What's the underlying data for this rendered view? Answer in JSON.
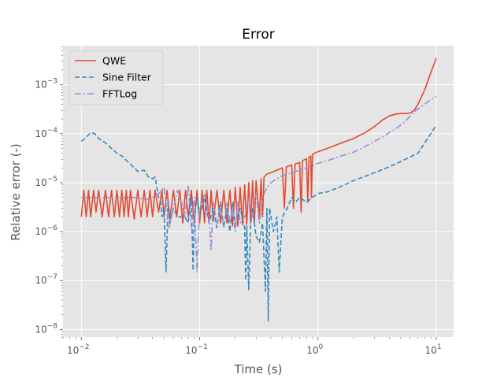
{
  "chart_data": {
    "type": "line",
    "title": "Error",
    "xlabel": "Time (s)",
    "ylabel": "Relative error (-)",
    "xscale": "log",
    "yscale": "log",
    "xlim": [
      0.007,
      14
    ],
    "ylim": [
      7e-09,
      0.0063
    ],
    "grid": true,
    "legend_position": "top-left",
    "background": "#e5e5e5",
    "x_ticks": [
      {
        "value": 0.01,
        "base": "10",
        "exp": "−2"
      },
      {
        "value": 0.1,
        "base": "10",
        "exp": "−1"
      },
      {
        "value": 1,
        "base": "10",
        "exp": "0"
      },
      {
        "value": 10,
        "base": "10",
        "exp": "1"
      }
    ],
    "y_ticks": [
      {
        "value": 1e-08,
        "base": "10",
        "exp": "−8"
      },
      {
        "value": 1e-07,
        "base": "10",
        "exp": "−7"
      },
      {
        "value": 1e-06,
        "base": "10",
        "exp": "−6"
      },
      {
        "value": 1e-05,
        "base": "10",
        "exp": "−5"
      },
      {
        "value": 0.0001,
        "base": "10",
        "exp": "−4"
      },
      {
        "value": 0.001,
        "base": "10",
        "exp": "−3"
      }
    ],
    "series": [
      {
        "name": "QWE",
        "color": "#e24a33",
        "dash": "solid",
        "points": [
          [
            0.01,
            2e-06
          ],
          [
            0.0105,
            7e-06
          ],
          [
            0.011,
            2e-06
          ],
          [
            0.0115,
            7e-06
          ],
          [
            0.012,
            2e-06
          ],
          [
            0.0127,
            7e-06
          ],
          [
            0.0133,
            2.5e-06
          ],
          [
            0.014,
            7e-06
          ],
          [
            0.015,
            2e-06
          ],
          [
            0.016,
            7e-06
          ],
          [
            0.017,
            2e-06
          ],
          [
            0.018,
            7e-06
          ],
          [
            0.019,
            2e-06
          ],
          [
            0.02,
            7e-06
          ],
          [
            0.021,
            2e-06
          ],
          [
            0.022,
            7e-06
          ],
          [
            0.023,
            2e-06
          ],
          [
            0.024,
            7e-06
          ],
          [
            0.025,
            2e-06
          ],
          [
            0.026,
            7e-06
          ],
          [
            0.028,
            1.8e-06
          ],
          [
            0.03,
            7e-06
          ],
          [
            0.032,
            2e-06
          ],
          [
            0.034,
            7e-06
          ],
          [
            0.036,
            2e-06
          ],
          [
            0.038,
            7e-06
          ],
          [
            0.04,
            2e-06
          ],
          [
            0.042,
            7e-06
          ],
          [
            0.045,
            2.5e-06
          ],
          [
            0.048,
            7e-06
          ],
          [
            0.05,
            2e-06
          ],
          [
            0.053,
            7e-06
          ],
          [
            0.056,
            1.8e-06
          ],
          [
            0.06,
            7e-06
          ],
          [
            0.064,
            2e-06
          ],
          [
            0.068,
            7e-06
          ],
          [
            0.072,
            1.5e-06
          ],
          [
            0.076,
            7e-06
          ],
          [
            0.08,
            2e-06
          ],
          [
            0.085,
            7e-06
          ],
          [
            0.09,
            1.5e-06
          ],
          [
            0.095,
            7e-06
          ],
          [
            0.1,
            1.5e-06
          ],
          [
            0.105,
            7e-06
          ],
          [
            0.11,
            1.5e-06
          ],
          [
            0.115,
            7e-06
          ],
          [
            0.12,
            1.5e-06
          ],
          [
            0.125,
            7e-06
          ],
          [
            0.13,
            1.6e-06
          ],
          [
            0.14,
            7e-06
          ],
          [
            0.15,
            1.5e-06
          ],
          [
            0.16,
            7e-06
          ],
          [
            0.17,
            1.5e-06
          ],
          [
            0.18,
            7e-06
          ],
          [
            0.19,
            1.3e-06
          ],
          [
            0.2,
            8e-06
          ],
          [
            0.21,
            1.3e-06
          ],
          [
            0.22,
            8e-06
          ],
          [
            0.23,
            1.4e-06
          ],
          [
            0.24,
            9e-06
          ],
          [
            0.25,
            1.4e-06
          ],
          [
            0.26,
            1e-05
          ],
          [
            0.27,
            1.5e-06
          ],
          [
            0.28,
            1.1e-05
          ],
          [
            0.29,
            1.5e-06
          ],
          [
            0.3,
            1.1e-05
          ],
          [
            0.32,
            2e-06
          ],
          [
            0.33,
            1.2e-05
          ],
          [
            0.34,
            2e-06
          ],
          [
            0.35,
            1.3e-05
          ],
          [
            0.36,
            1.4e-05
          ],
          [
            0.37,
            1.5e-05
          ],
          [
            0.4,
            1.6e-05
          ],
          [
            0.45,
            1.8e-05
          ],
          [
            0.5,
            2e-05
          ],
          [
            0.52,
            3e-06
          ],
          [
            0.54,
            2.1e-05
          ],
          [
            0.6,
            2.3e-05
          ],
          [
            0.62,
            3e-06
          ],
          [
            0.64,
            2.4e-05
          ],
          [
            0.7,
            2.6e-05
          ],
          [
            0.72,
            2.5e-06
          ],
          [
            0.74,
            2.8e-05
          ],
          [
            0.8,
            3.1e-05
          ],
          [
            0.82,
            4e-06
          ],
          [
            0.84,
            3.3e-05
          ],
          [
            0.87,
            3.5e-05
          ],
          [
            0.88,
            5e-06
          ],
          [
            0.9,
            3.8e-05
          ],
          [
            1,
            4.3e-05
          ],
          [
            1.2,
            5e-05
          ],
          [
            1.5,
            6.2e-05
          ],
          [
            2,
            8e-05
          ],
          [
            2.5,
            0.000105
          ],
          [
            3,
            0.00014
          ],
          [
            3.5,
            0.00019
          ],
          [
            4,
            0.00023
          ],
          [
            4.5,
            0.00025
          ],
          [
            5,
            0.00026
          ],
          [
            5.5,
            0.00026
          ],
          [
            6,
            0.000265
          ],
          [
            6.5,
            0.0003
          ],
          [
            7,
            0.0004
          ],
          [
            8,
            0.0008
          ],
          [
            9,
            0.0018
          ],
          [
            10,
            0.0035
          ]
        ]
      },
      {
        "name": "Sine Filter",
        "color": "#348abd",
        "dash": "6,3",
        "points": [
          [
            0.01,
            7e-05
          ],
          [
            0.011,
            8.5e-05
          ],
          [
            0.012,
            0.000105
          ],
          [
            0.013,
            0.0001
          ],
          [
            0.014,
            8e-05
          ],
          [
            0.016,
            6.5e-05
          ],
          [
            0.018,
            5e-05
          ],
          [
            0.02,
            4e-05
          ],
          [
            0.022,
            3.5e-05
          ],
          [
            0.025,
            2.6e-05
          ],
          [
            0.028,
            2e-05
          ],
          [
            0.03,
            1.7e-05
          ],
          [
            0.034,
            1.8e-05
          ],
          [
            0.037,
            1.3e-05
          ],
          [
            0.04,
            1.2e-05
          ],
          [
            0.042,
            1.3e-05
          ],
          [
            0.045,
            5e-06
          ],
          [
            0.047,
            4e-06
          ],
          [
            0.048,
            2e-06
          ],
          [
            0.05,
            3e-06
          ],
          [
            0.052,
            1.5e-07
          ],
          [
            0.054,
            4e-06
          ],
          [
            0.056,
            1.5e-06
          ],
          [
            0.06,
            3e-06
          ],
          [
            0.065,
            2e-06
          ],
          [
            0.07,
            2e-06
          ],
          [
            0.075,
            2e-06
          ],
          [
            0.08,
            1.5e-06
          ],
          [
            0.085,
            5e-06
          ],
          [
            0.088,
            1.6e-07
          ],
          [
            0.09,
            2e-06
          ],
          [
            0.095,
            5e-06
          ],
          [
            0.1,
            2e-06
          ],
          [
            0.11,
            5e-06
          ],
          [
            0.12,
            1.5e-06
          ],
          [
            0.13,
            3e-06
          ],
          [
            0.14,
            1.2e-06
          ],
          [
            0.15,
            4e-06
          ],
          [
            0.16,
            1.2e-06
          ],
          [
            0.17,
            3e-06
          ],
          [
            0.18,
            1e-06
          ],
          [
            0.19,
            4e-06
          ],
          [
            0.2,
            1.4e-06
          ],
          [
            0.22,
            3e-06
          ],
          [
            0.24,
            1.2e-06
          ],
          [
            0.245,
            1e-07
          ],
          [
            0.25,
            1.3e-06
          ],
          [
            0.26,
            6.5e-08
          ],
          [
            0.27,
            1.5e-06
          ],
          [
            0.28,
            3e-06
          ],
          [
            0.3,
            8e-07
          ],
          [
            0.32,
            6e-07
          ],
          [
            0.34,
            1.5e-06
          ],
          [
            0.36,
            6e-08
          ],
          [
            0.37,
            3e-06
          ],
          [
            0.38,
            1.5e-08
          ],
          [
            0.39,
            3e-06
          ],
          [
            0.42,
            1e-06
          ],
          [
            0.45,
            2e-06
          ],
          [
            0.47,
            1.5e-07
          ],
          [
            0.5,
            2e-06
          ],
          [
            0.55,
            3e-06
          ],
          [
            0.6,
            5e-06
          ],
          [
            0.65,
            4e-06
          ],
          [
            0.7,
            5e-06
          ],
          [
            0.8,
            4e-06
          ],
          [
            0.9,
            5e-06
          ],
          [
            1,
            6e-06
          ],
          [
            1.2,
            6.5e-06
          ],
          [
            1.5,
            8e-06
          ],
          [
            2,
            1.1e-05
          ],
          [
            3,
            1.6e-05
          ],
          [
            4,
            2.1e-05
          ],
          [
            5,
            2.7e-05
          ],
          [
            7,
            4e-05
          ],
          [
            10,
            0.00015
          ]
        ]
      },
      {
        "name": "FFTLog",
        "color": "#988ed5",
        "dash": "8,3,2,3",
        "points": [
          [
            0.01,
            5e-06
          ],
          [
            0.015,
            5e-06
          ],
          [
            0.02,
            5e-06
          ],
          [
            0.025,
            5e-06
          ],
          [
            0.03,
            5e-06
          ],
          [
            0.035,
            4.5e-06
          ],
          [
            0.04,
            5e-06
          ],
          [
            0.045,
            6e-06
          ],
          [
            0.048,
            7e-06
          ],
          [
            0.05,
            8e-06
          ],
          [
            0.055,
            1.2e-06
          ],
          [
            0.06,
            3e-06
          ],
          [
            0.065,
            7e-06
          ],
          [
            0.07,
            4e-06
          ],
          [
            0.075,
            2e-06
          ],
          [
            0.08,
            9e-06
          ],
          [
            0.085,
            1.2e-06
          ],
          [
            0.09,
            5e-06
          ],
          [
            0.095,
            1.5e-07
          ],
          [
            0.1,
            3e-06
          ],
          [
            0.11,
            6e-06
          ],
          [
            0.12,
            2e-06
          ],
          [
            0.125,
            4e-07
          ],
          [
            0.13,
            4e-06
          ],
          [
            0.14,
            1.5e-06
          ],
          [
            0.15,
            3e-06
          ],
          [
            0.16,
            1.2e-06
          ],
          [
            0.17,
            4e-06
          ],
          [
            0.18,
            1.5e-06
          ],
          [
            0.19,
            3e-06
          ],
          [
            0.2,
            1e-06
          ],
          [
            0.21,
            4e-06
          ],
          [
            0.22,
            1.5e-06
          ],
          [
            0.24,
            2e-06
          ],
          [
            0.26,
            5e-06
          ],
          [
            0.28,
            2e-06
          ],
          [
            0.3,
            6e-06
          ],
          [
            0.32,
            1.5e-06
          ],
          [
            0.34,
            5e-06
          ],
          [
            0.37,
            8e-06
          ],
          [
            0.4,
            1e-05
          ],
          [
            0.45,
            1.2e-05
          ],
          [
            0.5,
            1.4e-05
          ],
          [
            0.55,
            1.5e-05
          ],
          [
            0.6,
            1.6e-05
          ],
          [
            0.7,
            1.8e-05
          ],
          [
            0.8,
            2e-05
          ],
          [
            0.9,
            2.2e-05
          ],
          [
            1,
            2.5e-05
          ],
          [
            1.2,
            2.8e-05
          ],
          [
            1.5,
            3.4e-05
          ],
          [
            2,
            4.2e-05
          ],
          [
            2.5,
            5.5e-05
          ],
          [
            3,
            7e-05
          ],
          [
            3.5,
            8.5e-05
          ],
          [
            4,
            0.000105
          ],
          [
            4.5,
            0.000125
          ],
          [
            5,
            0.00015
          ],
          [
            5.5,
            0.00018
          ],
          [
            6,
            0.00023
          ],
          [
            6.5,
            0.00028
          ],
          [
            7,
            0.00032
          ],
          [
            8,
            0.0004
          ],
          [
            9,
            0.0005
          ],
          [
            10,
            0.00058
          ]
        ]
      }
    ]
  }
}
